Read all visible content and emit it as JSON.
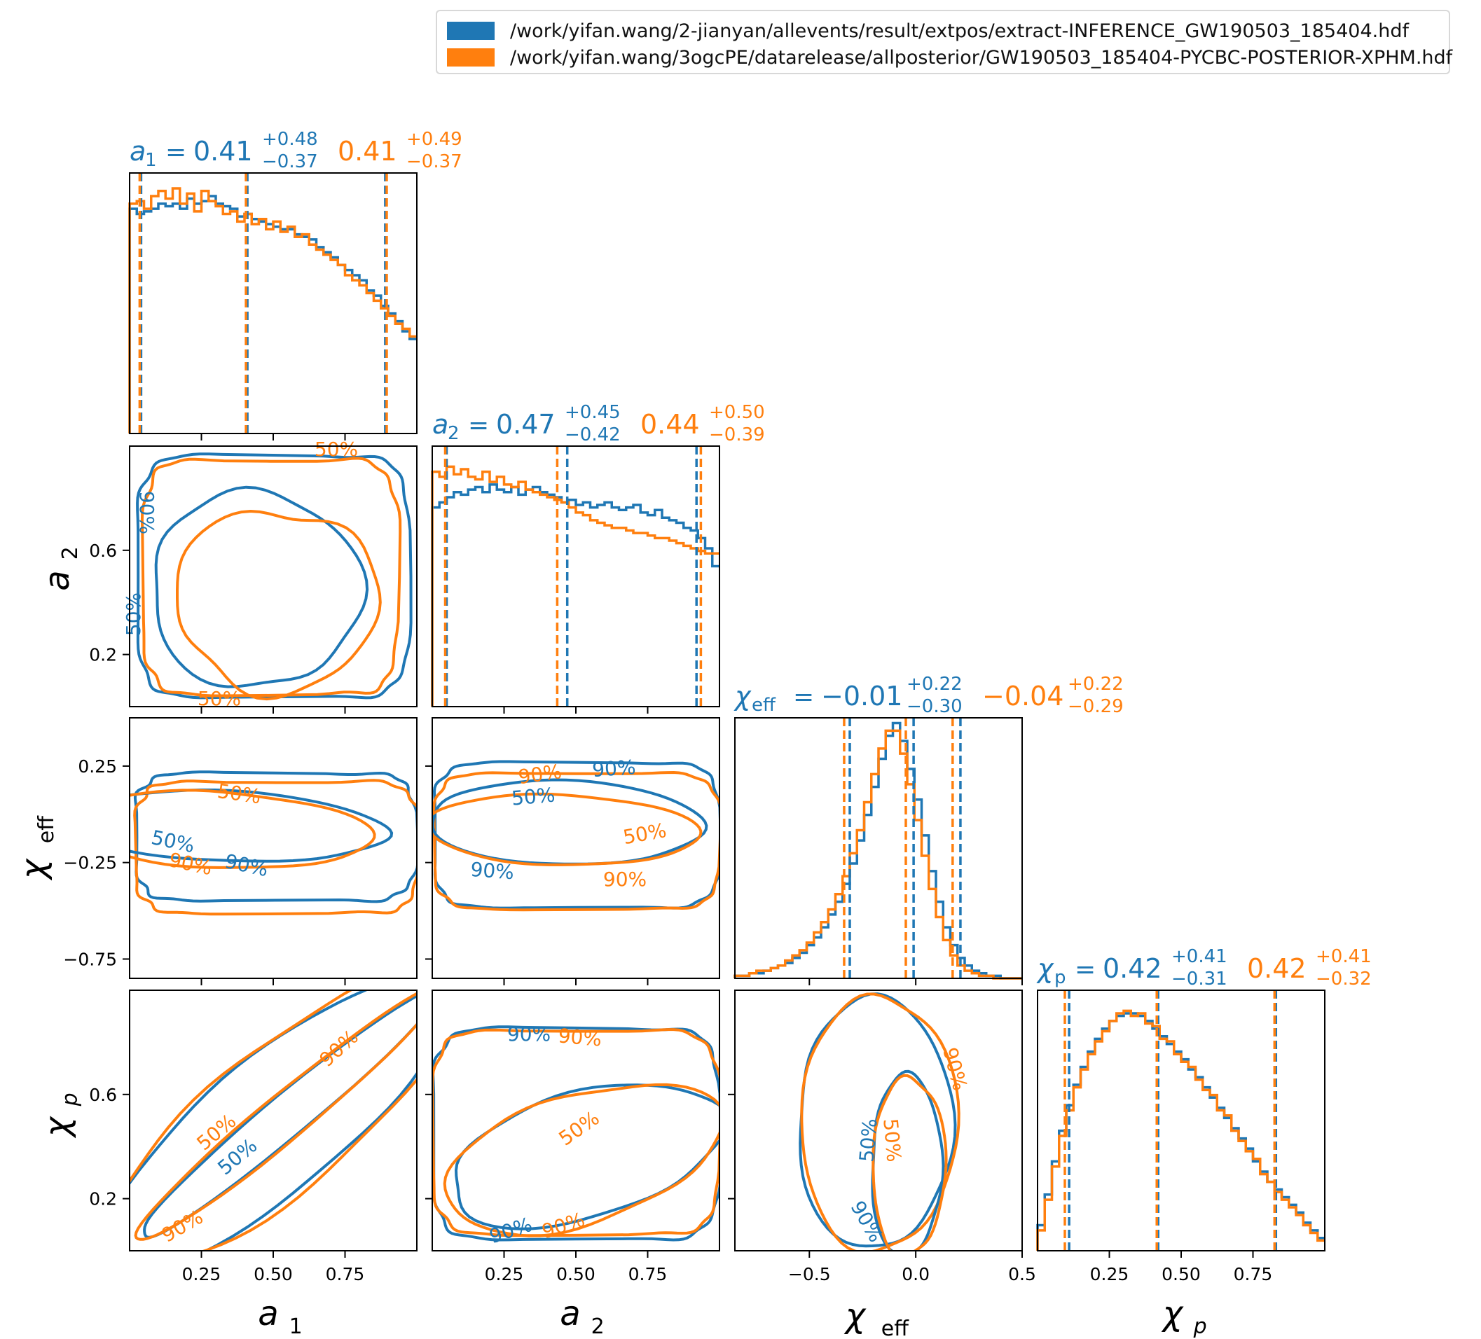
{
  "colors": {
    "blue": "#1f77b4",
    "orange": "#ff7f0e"
  },
  "legend": {
    "placement": "top-right",
    "items": [
      {
        "label": "/work/yifan.wang/2-jianyan/allevents/result/extpos/extract-INFERENCE_GW190503_185404.hdf",
        "color": "#1f77b4"
      },
      {
        "label": "/work/yifan.wang/3ogcPE/datarelease/allposterior/GW190503_185404-PYCBC-POSTERIOR-XPHM.hdf",
        "color": "#ff7f0e"
      }
    ]
  },
  "chart_data": {
    "type": "corner",
    "parameters": [
      {
        "key": "a1",
        "label_base": "a",
        "label_sub": "1",
        "range": [
          0,
          1
        ],
        "ticks": [
          "0.25",
          "0.50",
          "0.75"
        ],
        "tick_values": [
          0.25,
          0.5,
          0.75
        ],
        "title_blue": {
          "median": "0.41",
          "plus": "+0.48",
          "minus": "−0.37"
        },
        "title_orange": {
          "median": "0.41",
          "plus": "+0.49",
          "minus": "−0.37"
        },
        "lines_blue": [
          0.04,
          0.41,
          0.89
        ],
        "lines_orange": [
          0.04,
          0.41,
          0.9
        ]
      },
      {
        "key": "a2",
        "label_base": "a",
        "label_sub": "2",
        "range": [
          0,
          1
        ],
        "ticks": [
          "0.2",
          "0.6"
        ],
        "tick_values": [
          0.2,
          0.6
        ],
        "xticks": [
          "0.25",
          "0.50",
          "0.75"
        ],
        "xtick_values": [
          0.25,
          0.5,
          0.75
        ],
        "title_blue": {
          "median": "0.47",
          "plus": "+0.45",
          "minus": "−0.42"
        },
        "title_orange": {
          "median": "0.44",
          "plus": "+0.50",
          "minus": "−0.39"
        },
        "lines_blue": [
          0.05,
          0.47,
          0.92
        ],
        "lines_orange": [
          0.05,
          0.44,
          0.94
        ]
      },
      {
        "key": "chi_eff",
        "label_base": "χ",
        "label_sub": "eff",
        "range": [
          -0.85,
          0.5
        ],
        "ticks": [
          "0.25",
          "−0.25",
          "−0.75"
        ],
        "tick_values": [
          0.25,
          -0.25,
          -0.75
        ],
        "xticks": [
          "−0.5",
          "0.0",
          "0.5"
        ],
        "xtick_values": [
          -0.5,
          0.0,
          0.5
        ],
        "title_blue": {
          "median": "−0.01",
          "plus": "+0.22",
          "minus": "−0.30"
        },
        "title_orange": {
          "median": "−0.04",
          "plus": "+0.22",
          "minus": "−0.29"
        },
        "lines_blue": [
          -0.31,
          -0.01,
          0.21
        ],
        "lines_orange": [
          -0.33,
          -0.04,
          0.18
        ]
      },
      {
        "key": "chi_p",
        "label_base": "χ",
        "label_sub": "p",
        "range": [
          0,
          1
        ],
        "ticks": [
          "0.2",
          "0.6"
        ],
        "tick_values": [
          0.2,
          0.6
        ],
        "xticks": [
          "0.25",
          "0.50",
          "0.75"
        ],
        "xtick_values": [
          0.25,
          0.5,
          0.75
        ],
        "title_blue": {
          "median": "0.42",
          "plus": "+0.41",
          "minus": "−0.31"
        },
        "title_orange": {
          "median": "0.42",
          "plus": "+0.41",
          "minus": "−0.32"
        },
        "lines_blue": [
          0.11,
          0.42,
          0.83
        ],
        "lines_orange": [
          0.1,
          0.42,
          0.83
        ]
      }
    ],
    "histograms": {
      "a1_blue": [
        0.88,
        0.86,
        0.87,
        0.88,
        0.9,
        0.89,
        0.9,
        0.88,
        0.92,
        0.9,
        0.91,
        0.93,
        0.9,
        0.89,
        0.88,
        0.85,
        0.86,
        0.84,
        0.83,
        0.82,
        0.81,
        0.8,
        0.8,
        0.78,
        0.77,
        0.76,
        0.73,
        0.71,
        0.69,
        0.66,
        0.64,
        0.62,
        0.6,
        0.56,
        0.54,
        0.5,
        0.47,
        0.44,
        0.4,
        0.37
      ],
      "a1_orange": [
        0.9,
        0.91,
        0.88,
        0.93,
        0.95,
        0.92,
        0.96,
        0.9,
        0.94,
        0.87,
        0.95,
        0.91,
        0.89,
        0.86,
        0.87,
        0.83,
        0.86,
        0.82,
        0.84,
        0.8,
        0.83,
        0.79,
        0.81,
        0.77,
        0.78,
        0.74,
        0.72,
        0.7,
        0.68,
        0.66,
        0.62,
        0.6,
        0.58,
        0.55,
        0.52,
        0.49,
        0.46,
        0.43,
        0.41,
        0.38
      ],
      "a2_blue": [
        0.78,
        0.8,
        0.82,
        0.84,
        0.83,
        0.85,
        0.86,
        0.84,
        0.87,
        0.85,
        0.84,
        0.86,
        0.83,
        0.85,
        0.86,
        0.84,
        0.83,
        0.82,
        0.8,
        0.81,
        0.79,
        0.8,
        0.78,
        0.79,
        0.8,
        0.78,
        0.77,
        0.78,
        0.79,
        0.76,
        0.75,
        0.77,
        0.74,
        0.73,
        0.72,
        0.7,
        0.69,
        0.66,
        0.62,
        0.55
      ],
      "a2_orange": [
        0.92,
        0.9,
        0.94,
        0.91,
        0.93,
        0.9,
        0.89,
        0.92,
        0.88,
        0.9,
        0.87,
        0.86,
        0.88,
        0.85,
        0.84,
        0.83,
        0.82,
        0.81,
        0.8,
        0.78,
        0.76,
        0.75,
        0.73,
        0.72,
        0.71,
        0.7,
        0.7,
        0.69,
        0.68,
        0.68,
        0.67,
        0.66,
        0.66,
        0.65,
        0.64,
        0.63,
        0.62,
        0.61,
        0.6,
        0.6
      ],
      "chieff_blue": [
        0.01,
        0.01,
        0.02,
        0.02,
        0.03,
        0.04,
        0.05,
        0.06,
        0.08,
        0.1,
        0.13,
        0.16,
        0.2,
        0.25,
        0.3,
        0.37,
        0.45,
        0.54,
        0.64,
        0.75,
        0.86,
        0.95,
        1.0,
        0.93,
        0.82,
        0.7,
        0.56,
        0.42,
        0.3,
        0.2,
        0.13,
        0.08,
        0.05,
        0.03,
        0.02,
        0.01,
        0.01,
        0.0,
        0.0,
        0.0
      ],
      "chieff_orange": [
        0.01,
        0.01,
        0.02,
        0.03,
        0.03,
        0.04,
        0.05,
        0.07,
        0.09,
        0.11,
        0.14,
        0.18,
        0.22,
        0.27,
        0.33,
        0.4,
        0.49,
        0.58,
        0.69,
        0.8,
        0.9,
        0.97,
        0.97,
        0.88,
        0.76,
        0.62,
        0.48,
        0.35,
        0.24,
        0.15,
        0.09,
        0.05,
        0.03,
        0.02,
        0.01,
        0.01,
        0.0,
        0.0,
        0.0,
        0.0
      ],
      "chip_blue": [
        0.1,
        0.22,
        0.35,
        0.47,
        0.57,
        0.65,
        0.72,
        0.78,
        0.83,
        0.87,
        0.9,
        0.92,
        0.93,
        0.93,
        0.92,
        0.9,
        0.87,
        0.84,
        0.81,
        0.78,
        0.75,
        0.71,
        0.68,
        0.64,
        0.6,
        0.56,
        0.52,
        0.48,
        0.44,
        0.4,
        0.35,
        0.31,
        0.27,
        0.24,
        0.21,
        0.18,
        0.15,
        0.11,
        0.08,
        0.05
      ],
      "chip_orange": [
        0.08,
        0.2,
        0.33,
        0.45,
        0.55,
        0.64,
        0.71,
        0.77,
        0.82,
        0.86,
        0.9,
        0.93,
        0.94,
        0.92,
        0.93,
        0.89,
        0.88,
        0.83,
        0.82,
        0.77,
        0.74,
        0.72,
        0.67,
        0.63,
        0.61,
        0.55,
        0.53,
        0.47,
        0.43,
        0.39,
        0.36,
        0.3,
        0.27,
        0.23,
        0.2,
        0.17,
        0.14,
        0.1,
        0.07,
        0.04
      ]
    },
    "contour_labels": [
      "50%",
      "90%"
    ],
    "grid": false
  }
}
